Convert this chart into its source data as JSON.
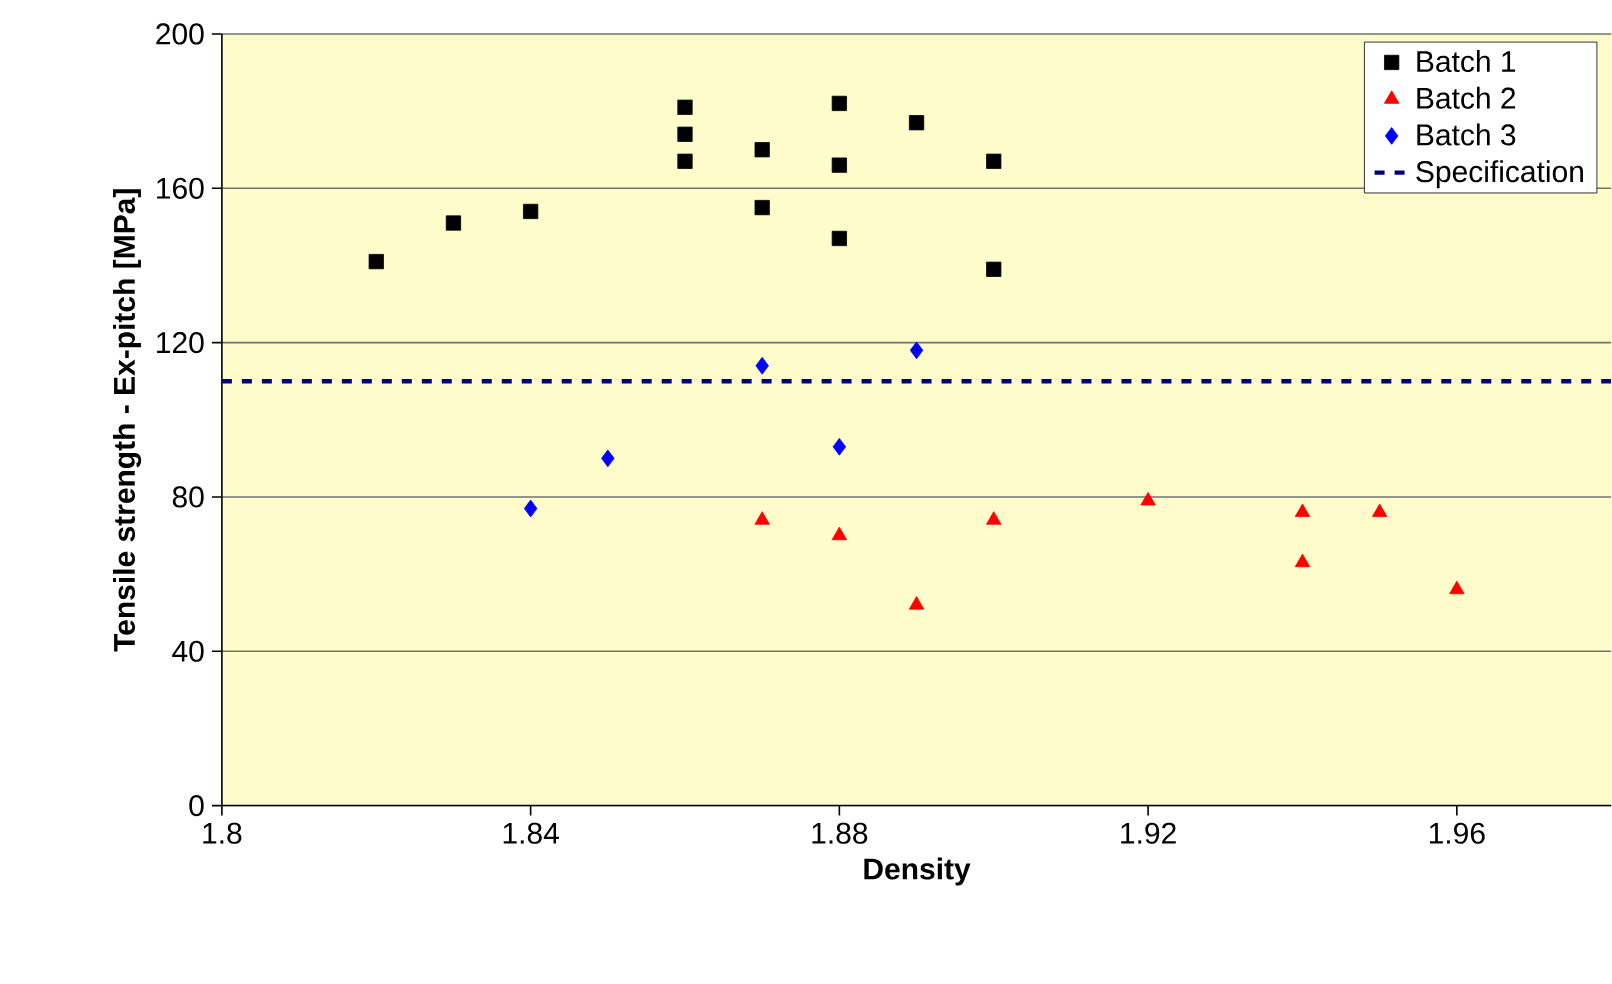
{
  "chart_data": {
    "type": "scatter",
    "xlabel": "Density",
    "ylabel": "Tensile strength - Ex-pitch [MPa]",
    "xlim": [
      1.8,
      1.98
    ],
    "xticks": [
      1.8,
      1.84,
      1.88,
      1.92,
      1.96
    ],
    "ylim": [
      0,
      200
    ],
    "yticks": [
      0,
      40,
      80,
      120,
      160,
      200
    ],
    "grid": "y",
    "legend": "top right",
    "series": [
      {
        "name": "Batch 1",
        "color": "#000000",
        "marker": "square",
        "x": [
          1.82,
          1.83,
          1.84,
          1.86,
          1.86,
          1.86,
          1.87,
          1.87,
          1.88,
          1.88,
          1.88,
          1.89,
          1.9,
          1.9
        ],
        "values": [
          141,
          151,
          154,
          181,
          174,
          167,
          170,
          155,
          182,
          166,
          147,
          177,
          167,
          139
        ]
      },
      {
        "name": "Batch 2",
        "color": "#ff0000",
        "marker": "triangle",
        "x": [
          1.87,
          1.88,
          1.89,
          1.9,
          1.92,
          1.94,
          1.94,
          1.95,
          1.96
        ],
        "values": [
          74,
          70,
          52,
          74,
          79,
          76,
          63,
          76,
          56
        ]
      },
      {
        "name": "Batch 3",
        "color": "#0000ff",
        "marker": "diamond",
        "x": [
          1.84,
          1.85,
          1.87,
          1.88,
          1.89
        ],
        "values": [
          77,
          90,
          114,
          93,
          118
        ]
      }
    ],
    "ref_lines": [
      {
        "axis": "y",
        "value": 110,
        "label": "Specification",
        "color": "#000080",
        "line_style": "dashed"
      }
    ]
  }
}
